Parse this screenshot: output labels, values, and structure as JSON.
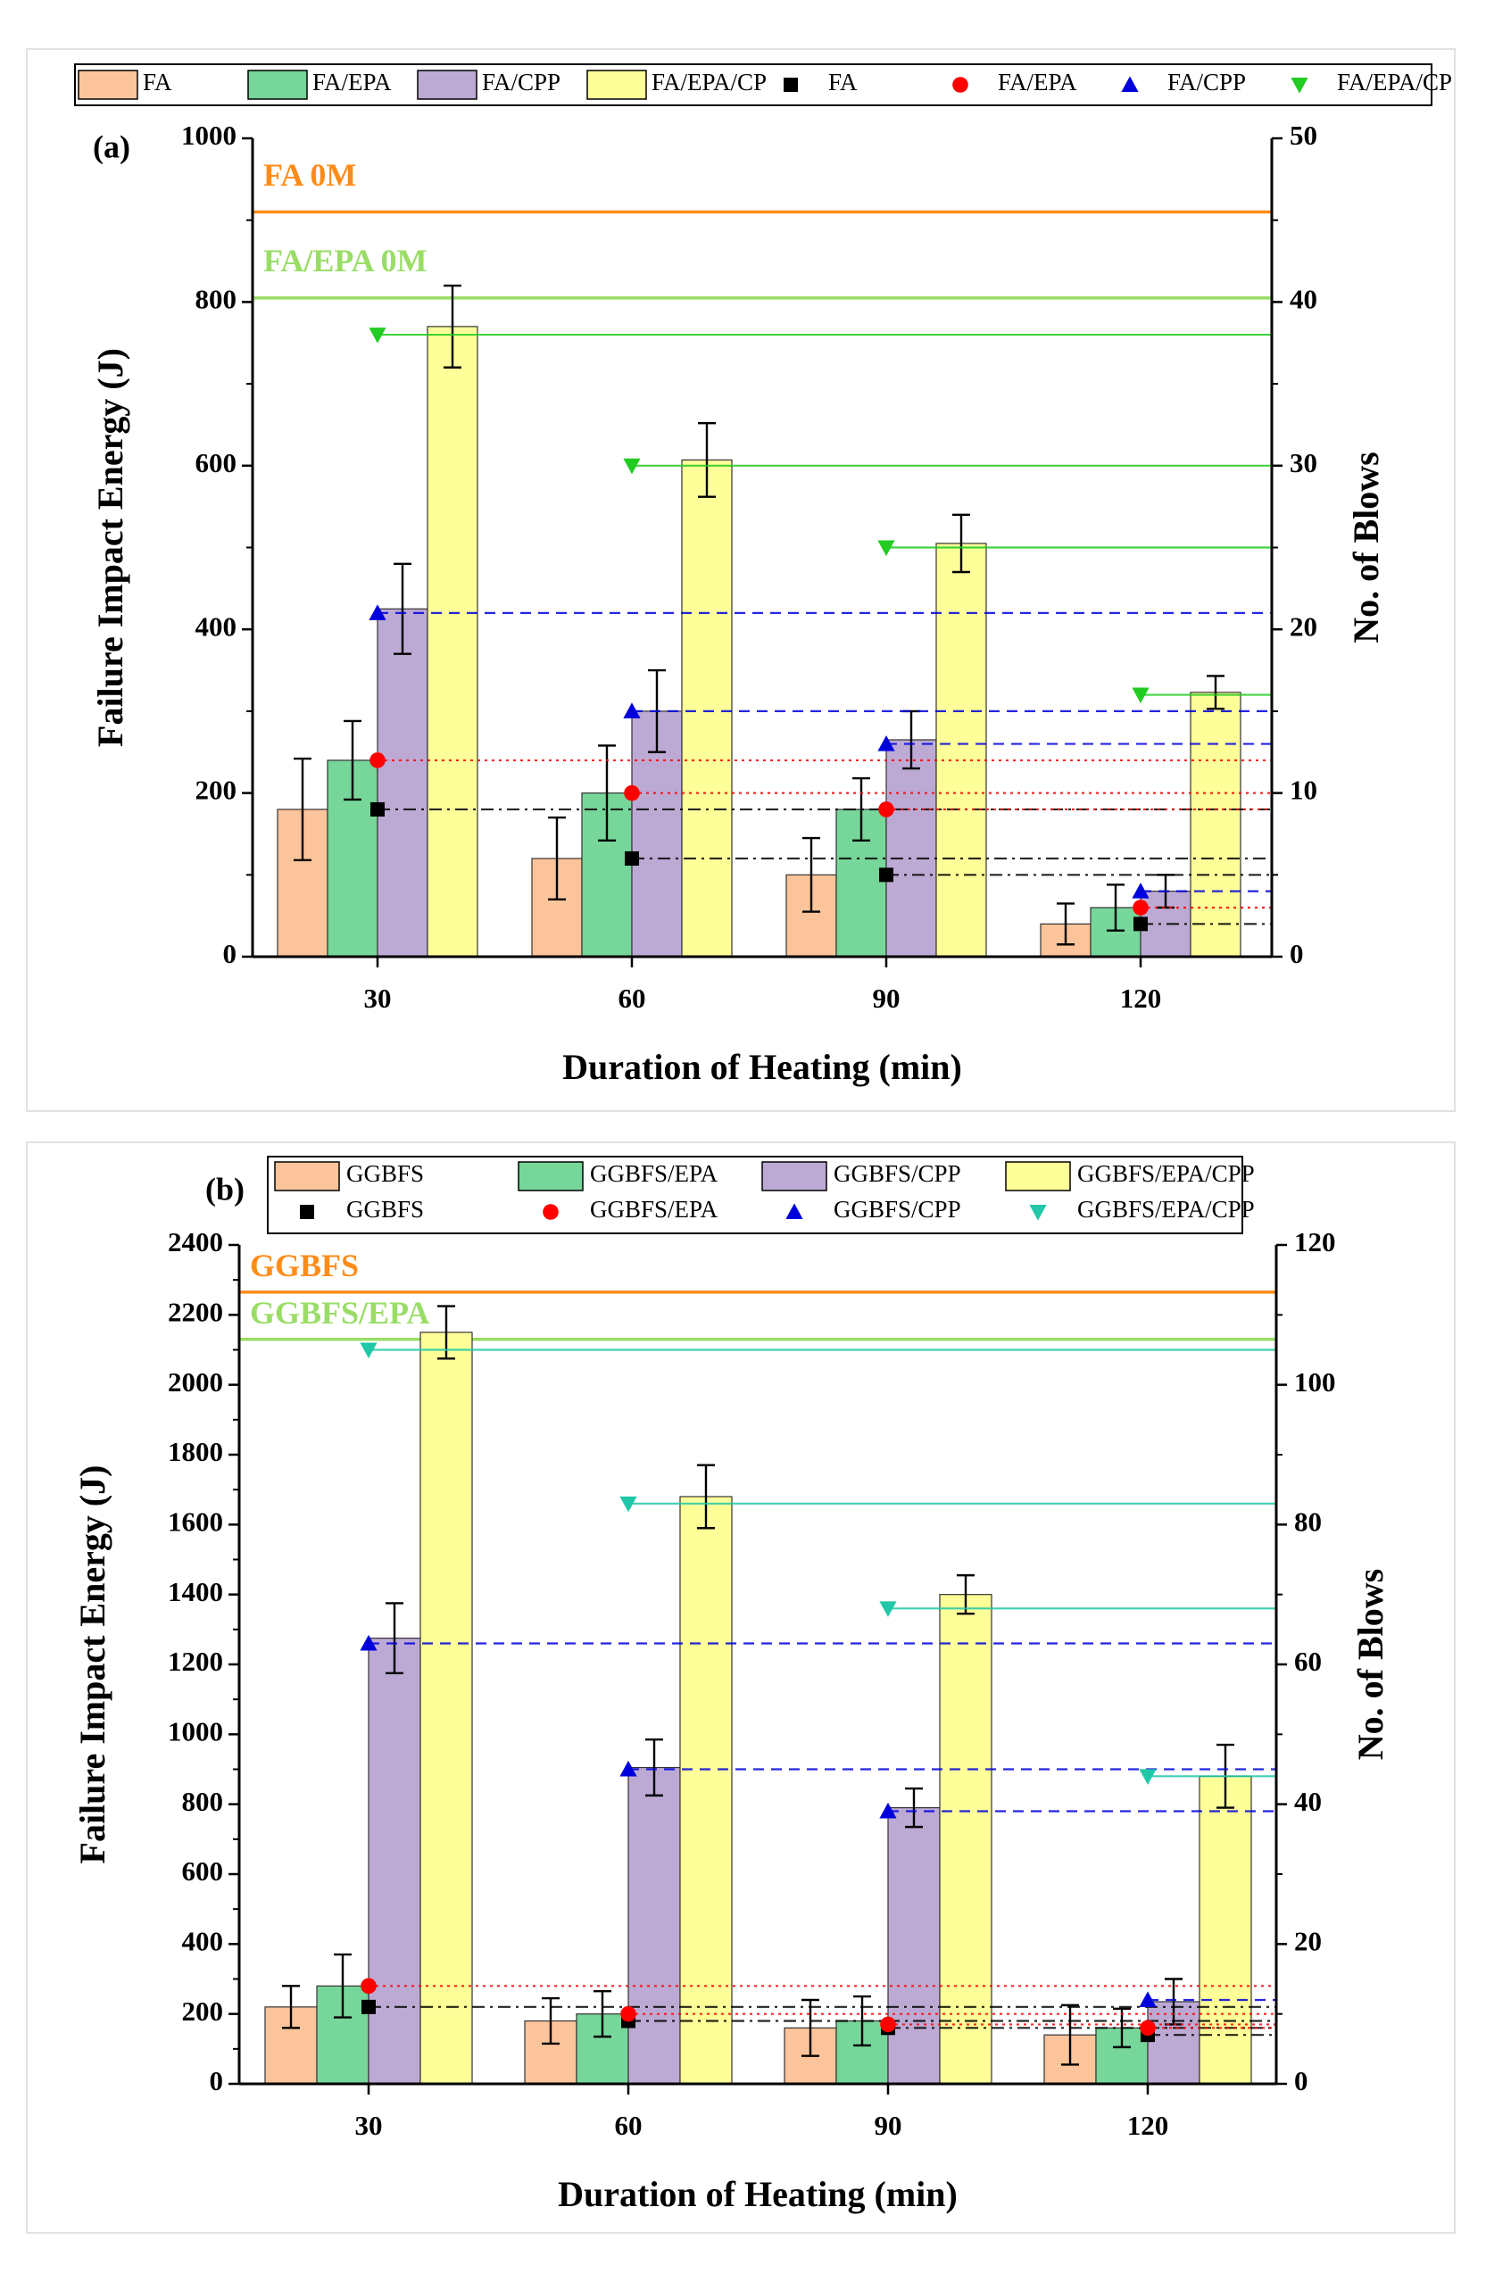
{
  "colors": {
    "FA": "#FCC49A",
    "EPA": "#77D69A",
    "CPP": "#BDAAD4",
    "ALL": "#FFFF99",
    "blows_base": "#000000",
    "blows_epa": "#FF0000",
    "blows_cpp": "#0000DD",
    "blows_all_a": "#22CC22",
    "blows_all_b": "#20C8A8",
    "ref_base": "#FF8C1A",
    "ref_epa": "#99DD66"
  },
  "chart_data": [
    {
      "panel_label": "(a)",
      "type": "bar",
      "xlabel": "Duration of Heating (min)",
      "ylabel": "Failure Impact Energy (J)",
      "y2label": "No. of Blows",
      "categories": [
        "30",
        "60",
        "90",
        "120"
      ],
      "ylim": [
        0,
        1000
      ],
      "y2lim": [
        0,
        50
      ],
      "yticks": [
        "0",
        "200",
        "400",
        "600",
        "800",
        "1000"
      ],
      "y2ticks": [
        "0",
        "10",
        "20",
        "30",
        "40",
        "50"
      ],
      "legend": [
        {
          "label": "FA",
          "kind": "bar",
          "color": "#FCC49A"
        },
        {
          "label": "FA/EPA",
          "kind": "bar",
          "color": "#77D69A"
        },
        {
          "label": "FA/CPP",
          "kind": "bar",
          "color": "#BDAAD4"
        },
        {
          "label": "FA/EPA/CP",
          "kind": "bar",
          "color": "#FFFF99"
        },
        {
          "label": "FA",
          "kind": "square",
          "color": "#000000"
        },
        {
          "label": "FA/EPA",
          "kind": "circle",
          "color": "#FF0000"
        },
        {
          "label": "FA/CPP",
          "kind": "triangle",
          "color": "#0000DD"
        },
        {
          "label": "FA/EPA/CP",
          "kind": "tri-down",
          "color": "#22CC22"
        }
      ],
      "bar_series": [
        {
          "name": "FA",
          "color": "#FCC49A",
          "values": [
            180,
            120,
            100,
            40
          ],
          "errors": [
            62,
            50,
            45,
            25
          ]
        },
        {
          "name": "FA/EPA",
          "color": "#77D69A",
          "values": [
            240,
            200,
            180,
            60
          ],
          "errors": [
            48,
            58,
            38,
            28
          ]
        },
        {
          "name": "FA/CPP",
          "color": "#BDAAD4",
          "values": [
            425,
            300,
            265,
            80
          ],
          "errors": [
            55,
            50,
            35,
            20
          ]
        },
        {
          "name": "FA/EPA/CP",
          "color": "#FFFF99",
          "values": [
            770,
            607,
            505,
            323
          ],
          "errors": [
            50,
            45,
            35,
            20
          ]
        }
      ],
      "blow_series": [
        {
          "name": "FA",
          "color": "#000000",
          "marker": "square",
          "line": "dashdot",
          "values": [
            9,
            6,
            5,
            2
          ]
        },
        {
          "name": "FA/EPA",
          "color": "#FF0000",
          "marker": "circle",
          "line": "dot",
          "values": [
            12,
            10,
            9,
            3
          ]
        },
        {
          "name": "FA/CPP",
          "color": "#0000DD",
          "marker": "triangle",
          "line": "dash",
          "values": [
            21,
            15,
            13,
            4
          ]
        },
        {
          "name": "FA/EPA/CP",
          "color": "#22CC22",
          "marker": "tri-down",
          "line": "solid",
          "values": [
            38,
            30,
            25,
            16
          ]
        }
      ],
      "reference_lines": [
        {
          "label": "FA 0M",
          "value": 910,
          "color": "#FF8C1A"
        },
        {
          "label": "FA/EPA 0M",
          "value": 805,
          "color": "#99DD66"
        }
      ]
    },
    {
      "panel_label": "(b)",
      "type": "bar",
      "xlabel": "Duration of Heating (min)",
      "ylabel": "Failure Impact Energy (J)",
      "y2label": "No. of Blows",
      "categories": [
        "30",
        "60",
        "90",
        "120"
      ],
      "ylim": [
        0,
        2400
      ],
      "y2lim": [
        0,
        120
      ],
      "yticks": [
        "0",
        "200",
        "400",
        "600",
        "800",
        "1000",
        "1200",
        "1400",
        "1600",
        "1800",
        "2000",
        "2200",
        "2400"
      ],
      "y2ticks": [
        "0",
        "20",
        "40",
        "60",
        "80",
        "100",
        "120"
      ],
      "legend": [
        {
          "label": "GGBFS",
          "kind": "bar",
          "color": "#FCC49A"
        },
        {
          "label": "GGBFS/EPA",
          "kind": "bar",
          "color": "#77D69A"
        },
        {
          "label": "GGBFS/CPP",
          "kind": "bar",
          "color": "#BDAAD4"
        },
        {
          "label": "GGBFS/EPA/CPP",
          "kind": "bar",
          "color": "#FFFF99"
        },
        {
          "label": "GGBFS",
          "kind": "square",
          "color": "#000000"
        },
        {
          "label": "GGBFS/EPA",
          "kind": "circle",
          "color": "#FF0000"
        },
        {
          "label": "GGBFS/CPP",
          "kind": "triangle",
          "color": "#0000DD"
        },
        {
          "label": "GGBFS/EPA/CPP",
          "kind": "tri-down",
          "color": "#20C8A8"
        }
      ],
      "bar_series": [
        {
          "name": "GGBFS",
          "color": "#FCC49A",
          "values": [
            220,
            180,
            160,
            140
          ],
          "errors": [
            60,
            65,
            80,
            85
          ]
        },
        {
          "name": "GGBFS/EPA",
          "color": "#77D69A",
          "values": [
            280,
            200,
            180,
            160
          ],
          "errors": [
            90,
            65,
            70,
            55
          ]
        },
        {
          "name": "GGBFS/CPP",
          "color": "#BDAAD4",
          "values": [
            1275,
            905,
            790,
            235
          ],
          "errors": [
            100,
            80,
            55,
            65
          ]
        },
        {
          "name": "GGBFS/EPA/CPP",
          "color": "#FFFF99",
          "values": [
            2150,
            1680,
            1400,
            880
          ],
          "errors": [
            75,
            90,
            55,
            90
          ]
        }
      ],
      "blow_series": [
        {
          "name": "GGBFS",
          "color": "#000000",
          "marker": "square",
          "line": "dashdot",
          "values": [
            11,
            9,
            8,
            7
          ]
        },
        {
          "name": "GGBFS/EPA",
          "color": "#FF0000",
          "marker": "circle",
          "line": "dot",
          "values": [
            14,
            10,
            8.5,
            8
          ]
        },
        {
          "name": "GGBFS/CPP",
          "color": "#0000DD",
          "marker": "triangle",
          "line": "dash",
          "values": [
            63,
            45,
            39,
            12
          ]
        },
        {
          "name": "GGBFS/EPA/CPP",
          "color": "#20C8A8",
          "marker": "tri-down",
          "line": "solid",
          "values": [
            105,
            83,
            68,
            44
          ]
        }
      ],
      "reference_lines": [
        {
          "label": "GGBFS",
          "value": 2265,
          "color": "#FF8C1A"
        },
        {
          "label": "GGBFS/EPA",
          "value": 2130,
          "color": "#99DD66"
        }
      ]
    }
  ]
}
